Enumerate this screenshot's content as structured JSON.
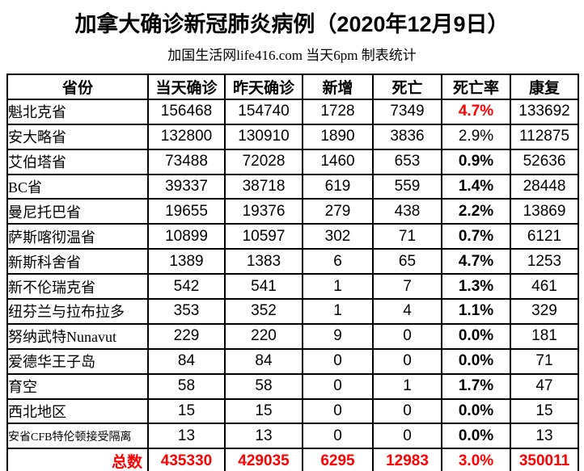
{
  "page": {
    "title": "加拿大确诊新冠肺炎病例（2020年12月9日）",
    "subtitle": "加国生活网life416.com 当天6pm 制表统计"
  },
  "colors": {
    "text": "#000000",
    "accent_red": "#ff0000",
    "border": "#000000",
    "background": "#ffffff"
  },
  "table": {
    "headers": [
      "省份",
      "当天确诊",
      "昨天确诊",
      "新增",
      "死亡",
      "死亡率",
      "康复"
    ],
    "rows": [
      {
        "province": "魁北克省",
        "today": "156468",
        "yesterday": "154740",
        "new": "1728",
        "deaths": "7349",
        "death_rate": "4.7%",
        "recovered": "133692",
        "rate_style": "red-bold",
        "small_font": false
      },
      {
        "province": "安大略省",
        "today": "132800",
        "yesterday": "130910",
        "new": "1890",
        "deaths": "3836",
        "death_rate": "2.9%",
        "recovered": "112875",
        "rate_style": "regular",
        "small_font": false
      },
      {
        "province": "艾伯塔省",
        "today": "73488",
        "yesterday": "72028",
        "new": "1460",
        "deaths": "653",
        "death_rate": "0.9%",
        "recovered": "52636",
        "rate_style": "bold",
        "small_font": false
      },
      {
        "province": "BC省",
        "today": "39337",
        "yesterday": "38718",
        "new": "619",
        "deaths": "559",
        "death_rate": "1.4%",
        "recovered": "28448",
        "rate_style": "bold",
        "small_font": false
      },
      {
        "province": "曼尼托巴省",
        "today": "19655",
        "yesterday": "19376",
        "new": "279",
        "deaths": "438",
        "death_rate": "2.2%",
        "recovered": "13869",
        "rate_style": "bold",
        "small_font": false
      },
      {
        "province": "萨斯喀彻温省",
        "today": "10899",
        "yesterday": "10597",
        "new": "302",
        "deaths": "71",
        "death_rate": "0.7%",
        "recovered": "6121",
        "rate_style": "bold",
        "small_font": false
      },
      {
        "province": "新斯科舍省",
        "today": "1389",
        "yesterday": "1383",
        "new": "6",
        "deaths": "65",
        "death_rate": "4.7%",
        "recovered": "1253",
        "rate_style": "bold",
        "small_font": false
      },
      {
        "province": "新不伦瑞克省",
        "today": "542",
        "yesterday": "541",
        "new": "1",
        "deaths": "7",
        "death_rate": "1.3%",
        "recovered": "461",
        "rate_style": "bold",
        "small_font": false
      },
      {
        "province": "纽芬兰与拉布拉多",
        "today": "353",
        "yesterday": "352",
        "new": "1",
        "deaths": "4",
        "death_rate": "1.1%",
        "recovered": "329",
        "rate_style": "bold",
        "small_font": false
      },
      {
        "province": "努纳武特Nunavut",
        "today": "229",
        "yesterday": "220",
        "new": "9",
        "deaths": "0",
        "death_rate": "0.0%",
        "recovered": "181",
        "rate_style": "bold",
        "small_font": false
      },
      {
        "province": "爱德华王子岛",
        "today": "84",
        "yesterday": "84",
        "new": "0",
        "deaths": "0",
        "death_rate": "0.0%",
        "recovered": "71",
        "rate_style": "bold",
        "small_font": false
      },
      {
        "province": "育空",
        "today": "58",
        "yesterday": "58",
        "new": "0",
        "deaths": "1",
        "death_rate": "1.7%",
        "recovered": "47",
        "rate_style": "bold",
        "small_font": false
      },
      {
        "province": "西北地区",
        "today": "15",
        "yesterday": "15",
        "new": "0",
        "deaths": "0",
        "death_rate": "0.0%",
        "recovered": "15",
        "rate_style": "bold",
        "small_font": false
      },
      {
        "province": "安省CFB特伦顿接受隔离",
        "today": "13",
        "yesterday": "13",
        "new": "0",
        "deaths": "0",
        "death_rate": "0.0%",
        "recovered": "13",
        "rate_style": "bold",
        "small_font": true
      }
    ],
    "total": {
      "label": "总数",
      "today": "435330",
      "yesterday": "429035",
      "new": "6295",
      "deaths": "12983",
      "death_rate": "3.0%",
      "recovered": "350011"
    }
  },
  "chart_data": {
    "type": "table",
    "title": "加拿大确诊新冠肺炎病例（2020年12月9日）",
    "subtitle": "加国生活网life416.com 当天6pm 制表统计",
    "columns": [
      "省份",
      "当天确诊",
      "昨天确诊",
      "新增",
      "死亡",
      "死亡率",
      "康复"
    ],
    "rows": [
      [
        "魁北克省",
        156468,
        154740,
        1728,
        7349,
        "4.7%",
        133692
      ],
      [
        "安大略省",
        132800,
        130910,
        1890,
        3836,
        "2.9%",
        112875
      ],
      [
        "艾伯塔省",
        73488,
        72028,
        1460,
        653,
        "0.9%",
        52636
      ],
      [
        "BC省",
        39337,
        38718,
        619,
        559,
        "1.4%",
        28448
      ],
      [
        "曼尼托巴省",
        19655,
        19376,
        279,
        438,
        "2.2%",
        13869
      ],
      [
        "萨斯喀彻温省",
        10899,
        10597,
        302,
        71,
        "0.7%",
        6121
      ],
      [
        "新斯科舍省",
        1389,
        1383,
        6,
        65,
        "4.7%",
        1253
      ],
      [
        "新不伦瑞克省",
        542,
        541,
        1,
        7,
        "1.3%",
        461
      ],
      [
        "纽芬兰与拉布拉多",
        353,
        352,
        1,
        4,
        "1.1%",
        329
      ],
      [
        "努纳武特Nunavut",
        229,
        220,
        9,
        0,
        "0.0%",
        181
      ],
      [
        "爱德华王子岛",
        84,
        84,
        0,
        0,
        "0.0%",
        71
      ],
      [
        "育空",
        58,
        58,
        0,
        1,
        "1.7%",
        47
      ],
      [
        "西北地区",
        15,
        15,
        0,
        0,
        "0.0%",
        15
      ],
      [
        "安省CFB特伦顿接受隔离",
        13,
        13,
        0,
        0,
        "0.0%",
        13
      ]
    ],
    "total_row": [
      "总数",
      435330,
      429035,
      6295,
      12983,
      "3.0%",
      350011
    ],
    "emphasis": {
      "red_bold_rate_rows": [
        0
      ],
      "regular_rate_rows": [
        1
      ],
      "bold_rate_rows": [
        2,
        3,
        4,
        5,
        6,
        7,
        8,
        9,
        10,
        11,
        12,
        13
      ],
      "total_row_color": "#ff0000"
    }
  }
}
